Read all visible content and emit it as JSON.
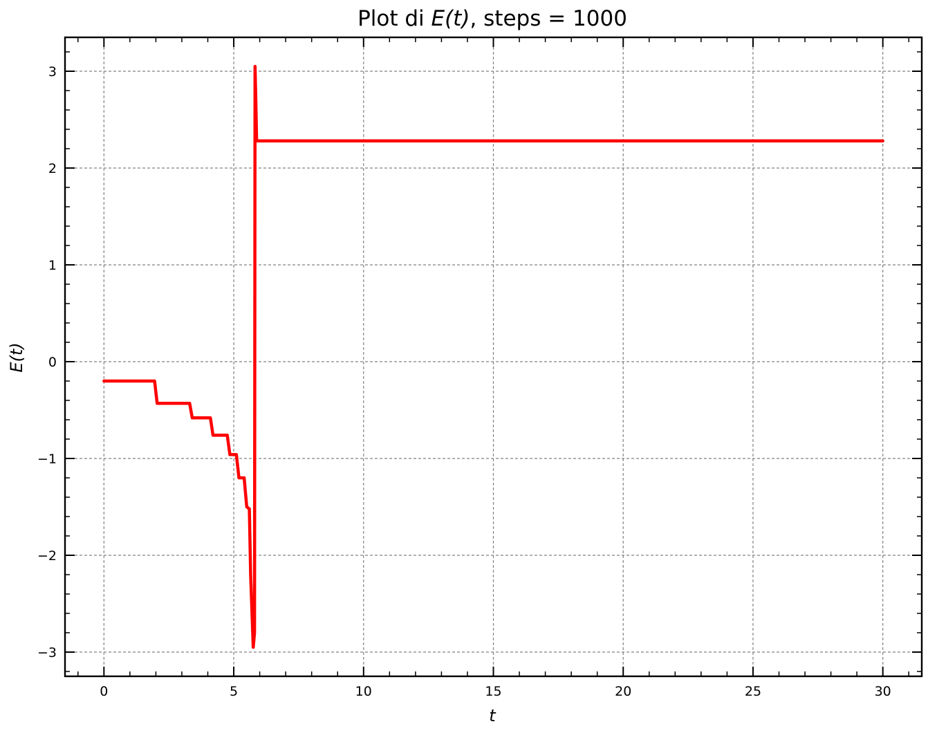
{
  "chart_data": {
    "type": "line",
    "title_prefix": "Plot di ",
    "title_math": "E(t)",
    "title_suffix": ", steps = 1000",
    "xlabel": "t",
    "ylabel": "E(t)",
    "xlim": [
      -1.5,
      31.5
    ],
    "ylim": [
      -3.25,
      3.35
    ],
    "xticks": [
      0,
      5,
      10,
      15,
      20,
      25,
      30
    ],
    "xtick_labels": [
      "0",
      "5",
      "10",
      "15",
      "20",
      "25",
      "30"
    ],
    "yticks": [
      -3,
      -2,
      -1,
      0,
      1,
      2,
      3
    ],
    "ytick_labels": [
      "−3",
      "−2",
      "−1",
      "0",
      "1",
      "2",
      "3"
    ],
    "x_minor_step": 1,
    "y_minor_step": 0.2,
    "grid": true,
    "series": [
      {
        "color": "#ff0000",
        "x": [
          0,
          1.95,
          2.05,
          3.3,
          3.4,
          4.1,
          4.2,
          4.75,
          4.85,
          5.1,
          5.2,
          5.4,
          5.5,
          5.6,
          5.65,
          5.75,
          5.8,
          5.82,
          5.85,
          5.88,
          5.9,
          30
        ],
        "y": [
          -0.2,
          -0.2,
          -0.43,
          -0.43,
          -0.58,
          -0.58,
          -0.76,
          -0.76,
          -0.96,
          -0.96,
          -1.2,
          -1.2,
          -1.5,
          -1.52,
          -2.2,
          -2.95,
          -2.8,
          3.05,
          2.7,
          2.28,
          2.28,
          2.28
        ]
      }
    ]
  }
}
